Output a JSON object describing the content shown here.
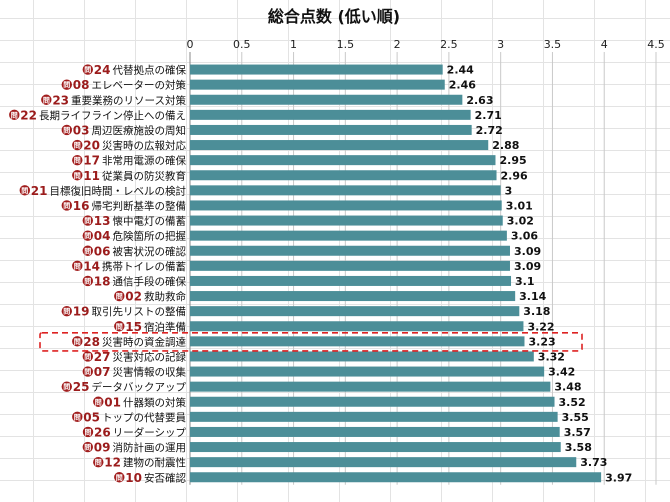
{
  "chart_data": {
    "type": "bar",
    "orientation": "horizontal",
    "title": "総合点数 (低い順)",
    "xlim": [
      0,
      4.5
    ],
    "x_ticks": [
      "0",
      "0.5",
      "1",
      "1.5",
      "2",
      "2.5",
      "3",
      "3.5",
      "4",
      "4.5"
    ],
    "question_prefix": "問",
    "question_numbers": [
      "24",
      "08",
      "23",
      "22",
      "03",
      "20",
      "17",
      "11",
      "21",
      "16",
      "13",
      "04",
      "06",
      "14",
      "18",
      "02",
      "19",
      "15",
      "28",
      "27",
      "07",
      "25",
      "01",
      "05",
      "26",
      "09",
      "12",
      "10"
    ],
    "categories": [
      "代替拠点の確保",
      "エレベーターの対策",
      "重要業務のリソース対策",
      "長期ライフライン停止への備え",
      "周辺医療施設の周知",
      "災害時の広報対応",
      "非常用電源の確保",
      "従業員の防災教育",
      "目標復旧時間・レベルの検討",
      "帰宅判断基準の整備",
      "懐中電灯の備蓄",
      "危険箇所の把握",
      "被害状況の確認",
      "携帯トイレの備蓄",
      "通信手段の確保",
      "救助救命",
      "取引先リストの整備",
      "宿泊準備",
      "災害時の資金調達",
      "災害対応の記録",
      "災害情報の収集",
      "データバックアップ",
      "什器類の対策",
      "トップの代替要員",
      "リーダーシップ",
      "消防計画の運用",
      "建物の耐震性",
      "安否確認"
    ],
    "values": [
      2.44,
      2.46,
      2.63,
      2.71,
      2.72,
      2.88,
      2.95,
      2.96,
      3,
      3.01,
      3.02,
      3.06,
      3.09,
      3.09,
      3.1,
      3.14,
      3.18,
      3.22,
      3.23,
      3.32,
      3.42,
      3.48,
      3.52,
      3.55,
      3.57,
      3.58,
      3.73,
      3.97
    ],
    "value_labels": [
      "2.44",
      "2.46",
      "2.63",
      "2.71",
      "2.72",
      "2.88",
      "2.95",
      "2.96",
      "3",
      "3.01",
      "3.02",
      "3.06",
      "3.09",
      "3.09",
      "3.1",
      "3.14",
      "3.18",
      "3.22",
      "3.23",
      "3.32",
      "3.42",
      "3.48",
      "3.52",
      "3.55",
      "3.57",
      "3.58",
      "3.73",
      "3.97"
    ],
    "highlighted_index": 18,
    "grid": true,
    "legend": "none",
    "colors": {
      "bar": "#4c8e98",
      "badge": "#a11d1d",
      "highlight": "#dd2222"
    }
  }
}
